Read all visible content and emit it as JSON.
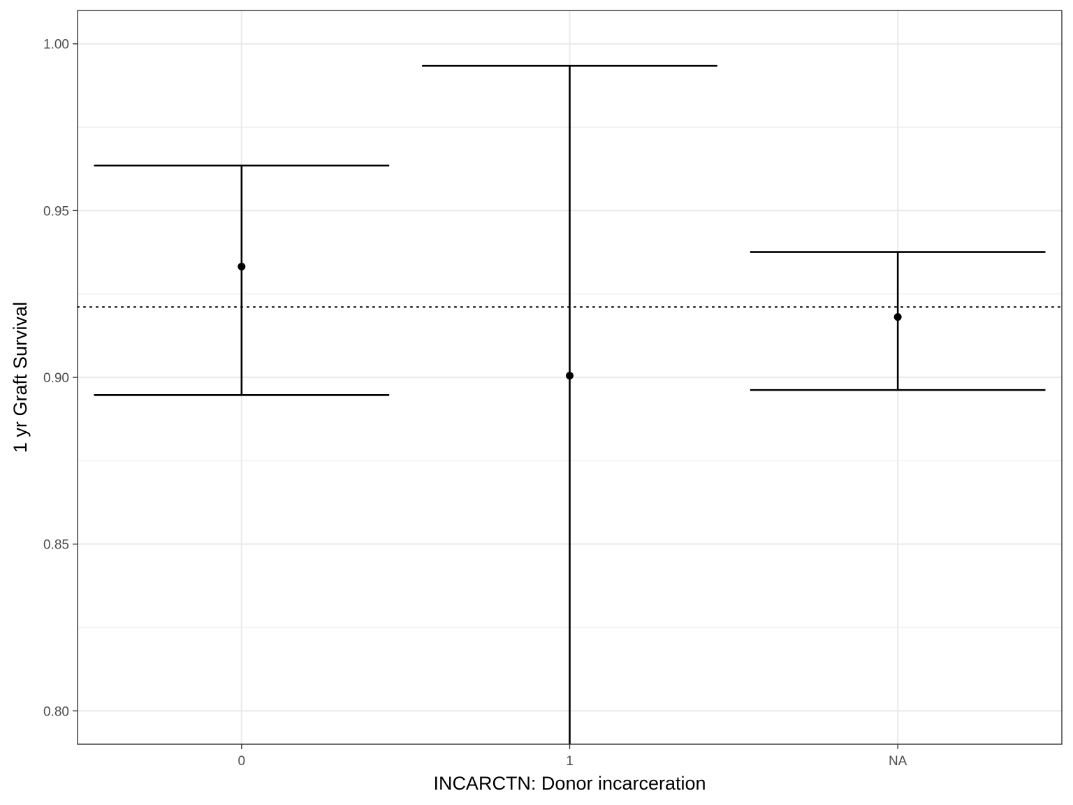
{
  "chart_data": {
    "type": "errorbar",
    "title": "",
    "xlabel": "INCARCTN: Donor incarceration",
    "ylabel": "1 yr Graft Survival",
    "categories": [
      "0",
      "1",
      "NA"
    ],
    "points": [
      {
        "category": "0",
        "estimate": 0.9332,
        "lower": 0.8947,
        "upper": 0.9635
      },
      {
        "category": "1",
        "estimate": 0.9005,
        "lower": 0.79,
        "upper": 0.9934
      },
      {
        "category": "NA",
        "estimate": 0.9181,
        "lower": 0.8962,
        "upper": 0.9376
      }
    ],
    "reference_line": {
      "y": 0.9211,
      "style": "dotted"
    },
    "ylim": [
      0.79,
      1.01
    ],
    "yticks": [
      0.8,
      0.85,
      0.9,
      0.95,
      1.0
    ],
    "ytick_labels": [
      "0.80",
      "0.85",
      "0.90",
      "0.95",
      "1.00"
    ],
    "grid": true,
    "legend": "none",
    "colors": {
      "marks": "#000000",
      "grid": "#ebebeb",
      "panel_border": "#333333",
      "tick_text": "#4d4d4d"
    }
  }
}
